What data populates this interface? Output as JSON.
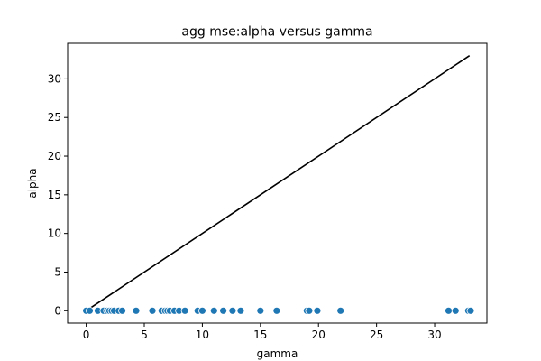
{
  "chart_data": {
    "type": "scatter",
    "title": "agg mse:alpha versus gamma",
    "xlabel": "gamma",
    "ylabel": "alpha",
    "xlim": [
      -1.6,
      34.5
    ],
    "ylim": [
      -1.6,
      34.6
    ],
    "xticks": [
      0,
      5,
      10,
      15,
      20,
      25,
      30
    ],
    "yticks": [
      0,
      5,
      10,
      15,
      20,
      25,
      30
    ],
    "grid": false,
    "legend": "none",
    "point_color": "#1f77b4",
    "line_color": "#000000",
    "reference_line": {
      "x": [
        0,
        33
      ],
      "y": [
        0,
        33
      ]
    },
    "points": {
      "x": [
        0.0,
        0.3,
        1.0,
        1.5,
        1.8,
        2.0,
        2.2,
        2.4,
        2.8,
        3.1,
        4.3,
        5.7,
        6.5,
        6.8,
        7.0,
        7.2,
        7.6,
        8.0,
        8.5,
        9.6,
        10.0,
        11.0,
        11.8,
        12.6,
        13.3,
        15.0,
        16.4,
        19.0,
        19.2,
        19.9,
        21.9,
        31.2,
        31.8,
        32.9,
        33.1
      ],
      "y": [
        0,
        0,
        0,
        0,
        0,
        0,
        0,
        0,
        0,
        0,
        0,
        0,
        0,
        0,
        0,
        0,
        0,
        0,
        0,
        0,
        0,
        0,
        0,
        0,
        0,
        0,
        0,
        0,
        0,
        0,
        0,
        0,
        0,
        0,
        0
      ]
    }
  }
}
